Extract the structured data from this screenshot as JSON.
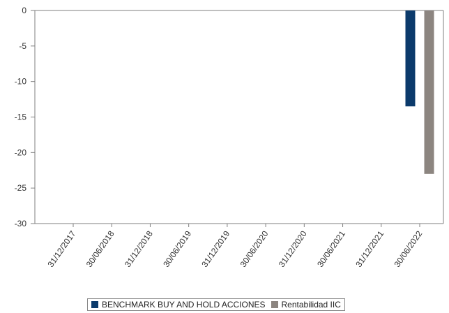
{
  "chart_data": {
    "type": "bar",
    "title": "",
    "xlabel": "",
    "ylabel": "",
    "categories": [
      "31/12/2017",
      "30/06/2018",
      "31/12/2018",
      "30/06/2019",
      "31/12/2019",
      "30/06/2020",
      "31/12/2020",
      "30/06/2021",
      "31/12/2021",
      "30/06/2022"
    ],
    "series": [
      {
        "name": "BENCHMARK BUY AND HOLD ACCIONES",
        "color": "#0b3a6b",
        "values": [
          null,
          null,
          null,
          null,
          null,
          null,
          null,
          null,
          null,
          -13.5
        ]
      },
      {
        "name": "Rentabilidad IIC",
        "color": "#8c8580",
        "values": [
          null,
          null,
          null,
          null,
          null,
          null,
          null,
          null,
          null,
          -23
        ]
      }
    ],
    "ylim": [
      -30,
      0
    ],
    "yticks": [
      "0",
      "-5",
      "-10",
      "-15",
      "-20",
      "-25",
      "-30"
    ],
    "grid": false,
    "legend_position": "bottom"
  }
}
